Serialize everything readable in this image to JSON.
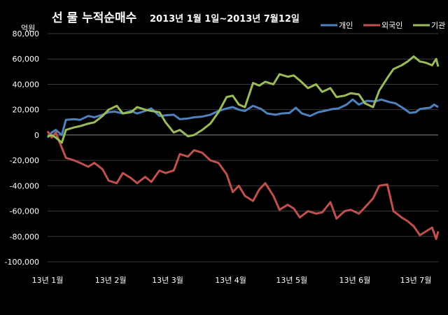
{
  "header": {
    "title": "선 물 누적순매수",
    "subtitle": "2013년 1월 1일~2013년 7월12일",
    "unit": "억원"
  },
  "legend": [
    {
      "label": "개인",
      "color": "#4f81bd"
    },
    {
      "label": "외국인",
      "color": "#c0504d"
    },
    {
      "label": "기관",
      "color": "#9bbb59"
    }
  ],
  "chart_data": {
    "type": "line",
    "title": "선 물 누적순매수 2013년 1월 1일~2013년 7월12일",
    "ylabel": "억원",
    "xlabel": "",
    "ylim": [
      -100000,
      80000
    ],
    "yticks": [
      80000,
      60000,
      40000,
      20000,
      0,
      -20000,
      -40000,
      -60000,
      -80000,
      -100000
    ],
    "ytick_labels": [
      "80,000",
      "60,000",
      "40,000",
      "20,000",
      "0",
      "-20,000",
      "-40,000",
      "-60,000",
      "-80,000",
      "-100,000"
    ],
    "x_tick_labels": [
      "13년 1월",
      "13년 2월",
      "13년 3월",
      "13년 4월",
      "13년 5월",
      "13년 6월",
      "13년 7월"
    ],
    "x_tick_dates": [
      "2013-01-01",
      "2013-02-01",
      "2013-03-01",
      "2013-04-01",
      "2013-05-01",
      "2013-06-01",
      "2013-07-01"
    ],
    "xlim": [
      "2013-01-01",
      "2013-07-12"
    ],
    "grid": true,
    "legend_position": "top-right",
    "series": [
      {
        "name": "개인",
        "color": "#4f81bd",
        "points": [
          [
            "2013-01-01",
            -2000
          ],
          [
            "2013-01-03",
            2000
          ],
          [
            "2013-01-05",
            4000
          ],
          [
            "2013-01-08",
            0
          ],
          [
            "2013-01-10",
            12000
          ],
          [
            "2013-01-14",
            12500
          ],
          [
            "2013-01-17",
            12000
          ],
          [
            "2013-01-21",
            15000
          ],
          [
            "2013-01-24",
            14000
          ],
          [
            "2013-01-28",
            16000
          ],
          [
            "2013-01-31",
            18000
          ],
          [
            "2013-02-03",
            18500
          ],
          [
            "2013-02-07",
            17000
          ],
          [
            "2013-02-11",
            19000
          ],
          [
            "2013-02-14",
            17000
          ],
          [
            "2013-02-18",
            19000
          ],
          [
            "2013-02-21",
            21000
          ],
          [
            "2013-02-25",
            15000
          ],
          [
            "2013-02-28",
            15500
          ],
          [
            "2013-03-04",
            16000
          ],
          [
            "2013-03-07",
            12500
          ],
          [
            "2013-03-11",
            13000
          ],
          [
            "2013-03-14",
            14000
          ],
          [
            "2013-03-18",
            14500
          ],
          [
            "2013-03-22",
            16000
          ],
          [
            "2013-03-26",
            19000
          ],
          [
            "2013-03-30",
            21000
          ],
          [
            "2013-04-02",
            22000
          ],
          [
            "2013-04-05",
            20000
          ],
          [
            "2013-04-08",
            19000
          ],
          [
            "2013-04-12",
            23000
          ],
          [
            "2013-04-16",
            20500
          ],
          [
            "2013-04-19",
            17000
          ],
          [
            "2013-04-23",
            16000
          ],
          [
            "2013-04-26",
            17000
          ],
          [
            "2013-04-30",
            17500
          ],
          [
            "2013-05-03",
            21500
          ],
          [
            "2013-05-06",
            17000
          ],
          [
            "2013-05-10",
            15000
          ],
          [
            "2013-05-14",
            18000
          ],
          [
            "2013-05-17",
            19000
          ],
          [
            "2013-05-21",
            20500
          ],
          [
            "2013-05-24",
            21000
          ],
          [
            "2013-05-28",
            24000
          ],
          [
            "2013-05-31",
            28000
          ],
          [
            "2013-06-03",
            24000
          ],
          [
            "2013-06-07",
            27000
          ],
          [
            "2013-06-11",
            26500
          ],
          [
            "2013-06-14",
            28000
          ],
          [
            "2013-06-18",
            26000
          ],
          [
            "2013-06-21",
            25000
          ],
          [
            "2013-06-25",
            21000
          ],
          [
            "2013-06-28",
            17500
          ],
          [
            "2013-07-01",
            18000
          ],
          [
            "2013-07-03",
            20500
          ],
          [
            "2013-07-05",
            21000
          ],
          [
            "2013-07-08",
            21500
          ],
          [
            "2013-07-10",
            24000
          ],
          [
            "2013-07-12",
            22000
          ]
        ]
      },
      {
        "name": "외국인",
        "color": "#c0504d",
        "points": [
          [
            "2013-01-01",
            3000
          ],
          [
            "2013-01-03",
            -2000
          ],
          [
            "2013-01-05",
            2000
          ],
          [
            "2013-01-08",
            -10000
          ],
          [
            "2013-01-10",
            -18000
          ],
          [
            "2013-01-14",
            -20000
          ],
          [
            "2013-01-17",
            -22000
          ],
          [
            "2013-01-21",
            -25000
          ],
          [
            "2013-01-24",
            -22000
          ],
          [
            "2013-01-28",
            -27000
          ],
          [
            "2013-01-31",
            -36000
          ],
          [
            "2013-02-04",
            -38000
          ],
          [
            "2013-02-07",
            -30000
          ],
          [
            "2013-02-11",
            -34000
          ],
          [
            "2013-02-14",
            -38000
          ],
          [
            "2013-02-18",
            -33000
          ],
          [
            "2013-02-21",
            -37000
          ],
          [
            "2013-02-25",
            -28000
          ],
          [
            "2013-02-28",
            -30000
          ],
          [
            "2013-03-04",
            -28000
          ],
          [
            "2013-03-07",
            -15000
          ],
          [
            "2013-03-11",
            -17000
          ],
          [
            "2013-03-14",
            -12000
          ],
          [
            "2013-03-18",
            -14000
          ],
          [
            "2013-03-22",
            -20000
          ],
          [
            "2013-03-26",
            -22000
          ],
          [
            "2013-03-30",
            -31000
          ],
          [
            "2013-04-02",
            -45000
          ],
          [
            "2013-04-05",
            -40000
          ],
          [
            "2013-04-08",
            -48000
          ],
          [
            "2013-04-12",
            -52000
          ],
          [
            "2013-04-15",
            -43000
          ],
          [
            "2013-04-18",
            -38000
          ],
          [
            "2013-04-22",
            -48000
          ],
          [
            "2013-04-25",
            -59000
          ],
          [
            "2013-04-29",
            -55000
          ],
          [
            "2013-05-02",
            -58000
          ],
          [
            "2013-05-05",
            -65000
          ],
          [
            "2013-05-09",
            -60000
          ],
          [
            "2013-05-13",
            -62000
          ],
          [
            "2013-05-16",
            -61000
          ],
          [
            "2013-05-20",
            -53000
          ],
          [
            "2013-05-23",
            -66000
          ],
          [
            "2013-05-27",
            -60000
          ],
          [
            "2013-05-30",
            -59000
          ],
          [
            "2013-06-03",
            -62000
          ],
          [
            "2013-06-06",
            -57000
          ],
          [
            "2013-06-10",
            -50000
          ],
          [
            "2013-06-13",
            -40000
          ],
          [
            "2013-06-17",
            -39000
          ],
          [
            "2013-06-20",
            -60000
          ],
          [
            "2013-06-24",
            -65000
          ],
          [
            "2013-06-27",
            -68000
          ],
          [
            "2013-06-30",
            -72000
          ],
          [
            "2013-07-03",
            -79000
          ],
          [
            "2013-07-06",
            -76000
          ],
          [
            "2013-07-09",
            -73000
          ],
          [
            "2013-07-11",
            -82000
          ],
          [
            "2013-07-12",
            -76000
          ]
        ]
      },
      {
        "name": "기관",
        "color": "#9bbb59",
        "points": [
          [
            "2013-01-01",
            -1000
          ],
          [
            "2013-01-03",
            0
          ],
          [
            "2013-01-05",
            -2000
          ],
          [
            "2013-01-08",
            -6000
          ],
          [
            "2013-01-10",
            4000
          ],
          [
            "2013-01-14",
            6000
          ],
          [
            "2013-01-17",
            7000
          ],
          [
            "2013-01-21",
            9000
          ],
          [
            "2013-01-24",
            10000
          ],
          [
            "2013-01-28",
            15000
          ],
          [
            "2013-01-31",
            20000
          ],
          [
            "2013-02-04",
            23000
          ],
          [
            "2013-02-07",
            17000
          ],
          [
            "2013-02-11",
            18000
          ],
          [
            "2013-02-14",
            22000
          ],
          [
            "2013-02-18",
            20000
          ],
          [
            "2013-02-21",
            19000
          ],
          [
            "2013-02-25",
            18000
          ],
          [
            "2013-02-28",
            10000
          ],
          [
            "2013-03-04",
            2000
          ],
          [
            "2013-03-07",
            4000
          ],
          [
            "2013-03-11",
            -1000
          ],
          [
            "2013-03-14",
            0
          ],
          [
            "2013-03-18",
            4000
          ],
          [
            "2013-03-22",
            9000
          ],
          [
            "2013-03-26",
            18000
          ],
          [
            "2013-03-30",
            30000
          ],
          [
            "2013-04-02",
            31000
          ],
          [
            "2013-04-05",
            24000
          ],
          [
            "2013-04-08",
            22000
          ],
          [
            "2013-04-12",
            41000
          ],
          [
            "2013-04-15",
            39000
          ],
          [
            "2013-04-18",
            42000
          ],
          [
            "2013-04-22",
            40000
          ],
          [
            "2013-04-25",
            48000
          ],
          [
            "2013-04-29",
            46000
          ],
          [
            "2013-05-02",
            47000
          ],
          [
            "2013-05-05",
            43000
          ],
          [
            "2013-05-09",
            37000
          ],
          [
            "2013-05-13",
            40000
          ],
          [
            "2013-05-16",
            34000
          ],
          [
            "2013-05-20",
            37000
          ],
          [
            "2013-05-23",
            30000
          ],
          [
            "2013-05-27",
            31000
          ],
          [
            "2013-05-30",
            33000
          ],
          [
            "2013-06-03",
            32000
          ],
          [
            "2013-06-06",
            25000
          ],
          [
            "2013-06-10",
            22000
          ],
          [
            "2013-06-13",
            35000
          ],
          [
            "2013-06-17",
            45000
          ],
          [
            "2013-06-20",
            52000
          ],
          [
            "2013-06-24",
            55000
          ],
          [
            "2013-06-27",
            58000
          ],
          [
            "2013-06-30",
            62000
          ],
          [
            "2013-07-03",
            58000
          ],
          [
            "2013-07-06",
            57000
          ],
          [
            "2013-07-09",
            55000
          ],
          [
            "2013-07-11",
            60000
          ],
          [
            "2013-07-12",
            54000
          ]
        ]
      }
    ]
  }
}
